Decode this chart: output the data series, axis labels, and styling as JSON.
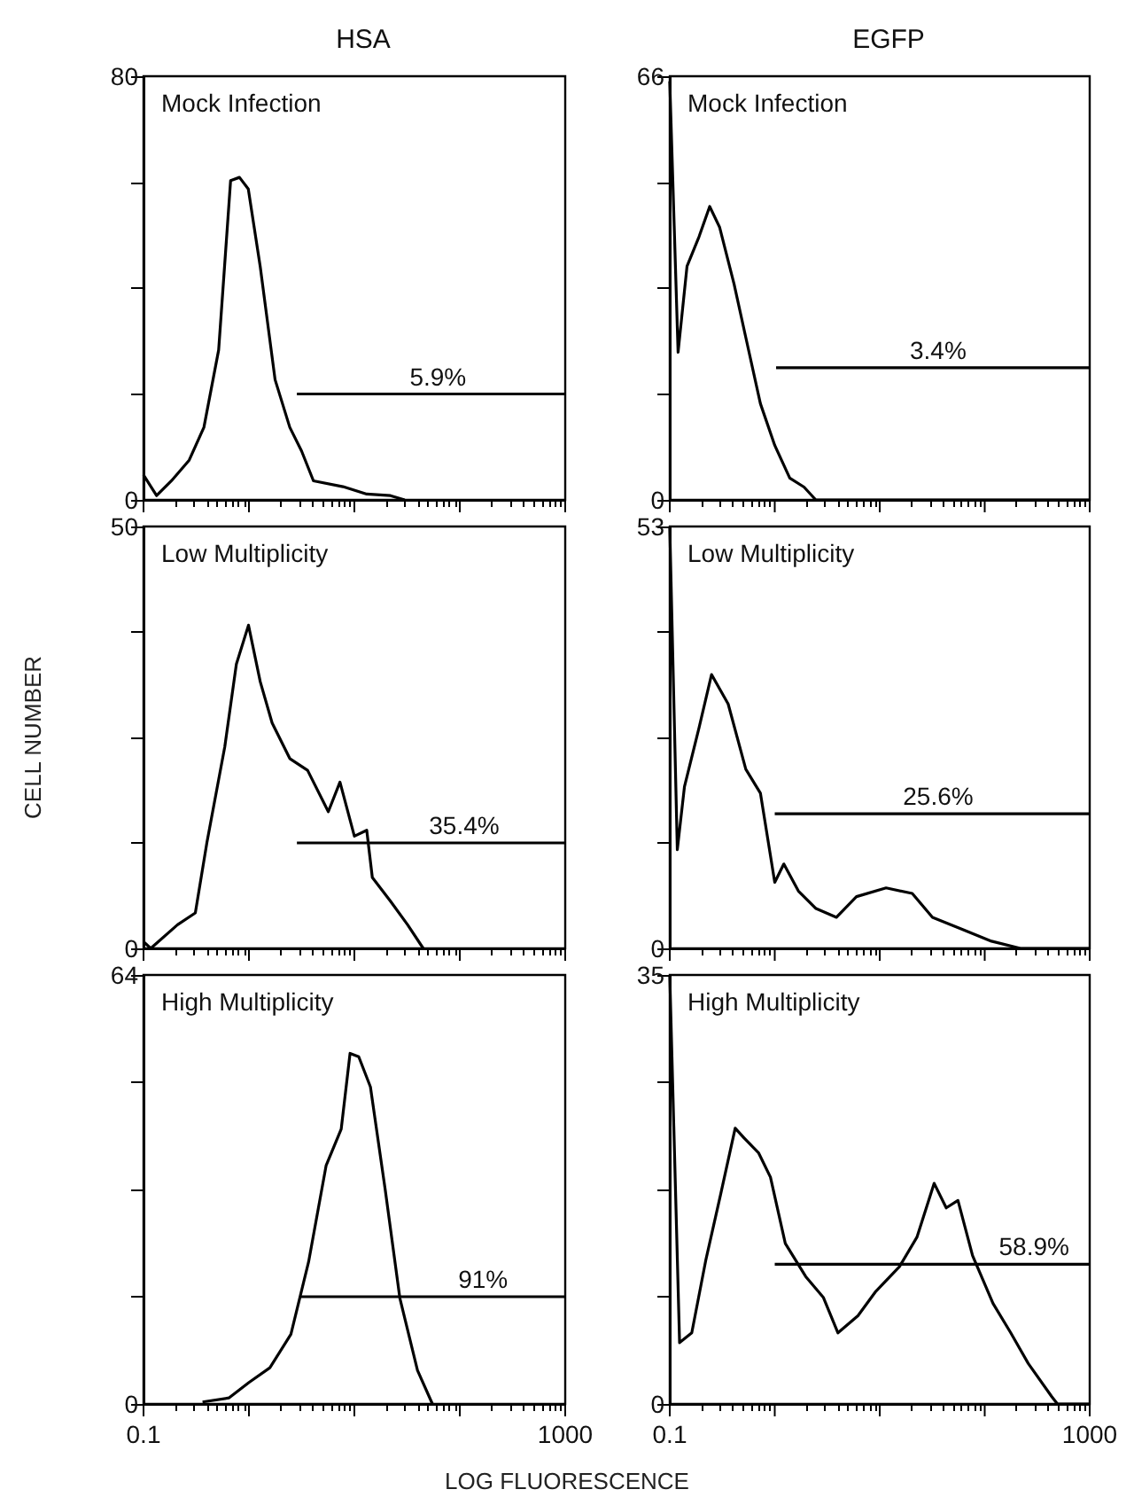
{
  "chart_data": [
    {
      "type": "line",
      "title": "HSA",
      "annotations": [
        "Mock Infection",
        {
          "text": "5.9%",
          "x": 62,
          "y": 20
        }
      ],
      "log": "x",
      "xlim": [
        0.1,
        1000
      ],
      "xticks": [
        {
          "value": 0.1,
          "label": null
        },
        {
          "value": 1,
          "label": null
        },
        {
          "value": 10,
          "label": null
        },
        {
          "value": 100,
          "label": null
        },
        {
          "value": 1000,
          "label": null
        }
      ],
      "ylim": [
        0,
        80
      ],
      "yticks": [
        0,
        {
          "value": 20,
          "label": null
        },
        {
          "value": 40,
          "label": null
        },
        {
          "value": 60,
          "label": null
        },
        80
      ],
      "tick_labels": "y",
      "marker": "none",
      "series": [
        {
          "color": "#000000",
          "x": [
            0.1,
            0.133,
            0.184,
            0.271,
            0.374,
            0.516,
            0.67,
            0.813,
            0.986,
            1.28,
            1.77,
            2.44,
            3.16,
            4.09,
            7.8,
            13.1,
            22,
            30
          ],
          "values": [
            4.7,
            0.8,
            3.6,
            7.5,
            13.7,
            28.3,
            60.3,
            60.9,
            58.7,
            44,
            22.7,
            13.7,
            9.2,
            3.6,
            2.5,
            1.1,
            0.8,
            0
          ]
        },
        {
          "color": "#000000",
          "x": [
            2.85,
            1000
          ],
          "values": [
            20,
            20
          ]
        }
      ]
    },
    {
      "type": "line",
      "title": "EGFP",
      "annotations": [
        "Mock Infection",
        {
          "text": "3.4%",
          "x": 36,
          "y": 20.6
        }
      ],
      "log": "x",
      "xlim": [
        0.1,
        1000
      ],
      "xticks": [
        {
          "value": 0.1,
          "label": null
        },
        {
          "value": 1,
          "label": null
        },
        {
          "value": 10,
          "label": null
        },
        {
          "value": 100,
          "label": null
        },
        {
          "value": 1000,
          "label": null
        }
      ],
      "ylim": [
        0,
        66
      ],
      "yticks": [
        0,
        {
          "value": 16.5,
          "label": null
        },
        {
          "value": 33,
          "label": null
        },
        {
          "value": 49.5,
          "label": null
        },
        66
      ],
      "tick_labels": "y",
      "marker": "none",
      "series": [
        {
          "color": "#000000",
          "x": [
            0.1,
            0.12,
            0.146,
            0.19,
            0.24,
            0.298,
            0.41,
            0.53,
            0.73,
            1.0,
            1.39,
            1.9,
            2.46,
            1000
          ],
          "values": [
            65.2,
            23,
            36.4,
            41,
            45.7,
            42.5,
            33.6,
            25.3,
            15,
            8.5,
            3.4,
            2,
            0,
            0
          ]
        },
        {
          "color": "#000000",
          "x": [
            1.03,
            1000
          ],
          "values": [
            20.6,
            20.6
          ]
        }
      ]
    },
    {
      "type": "line",
      "ylabel": "CELL NUMBER",
      "annotations": [
        "Low Multiplicity",
        {
          "text": "35.4%",
          "x": 110,
          "y": 12.5
        }
      ],
      "log": "x",
      "xlim": [
        0.1,
        1000
      ],
      "xticks": [
        {
          "value": 0.1,
          "label": null
        },
        {
          "value": 1,
          "label": null
        },
        {
          "value": 10,
          "label": null
        },
        {
          "value": 100,
          "label": null
        },
        {
          "value": 1000,
          "label": null
        }
      ],
      "ylim": [
        0,
        50
      ],
      "yticks": [
        0,
        {
          "value": 12.5,
          "label": null
        },
        {
          "value": 25,
          "label": null
        },
        {
          "value": 37.5,
          "label": null
        },
        50
      ],
      "tick_labels": "y",
      "marker": "none",
      "series": [
        {
          "color": "#000000",
          "x": [
            0.1,
            0.117,
            0.21,
            0.31,
            0.4,
            0.59,
            0.76,
            0.99,
            1.28,
            1.66,
            2.44,
            3.6,
            5.66,
            7.3,
            10,
            13.1,
            14.8,
            22,
            32,
            45
          ],
          "values": [
            0.8,
            0,
            2.8,
            4.2,
            12.6,
            23.9,
            33.7,
            38.3,
            31.6,
            26.7,
            22.5,
            21.1,
            16.2,
            19.7,
            13.3,
            14,
            8.4,
            5.6,
            2.8,
            0
          ]
        },
        {
          "color": "#000000",
          "x": [
            2.85,
            1000
          ],
          "values": [
            12.5,
            12.5
          ]
        }
      ]
    },
    {
      "type": "line",
      "annotations": [
        "Low Multiplicity",
        {
          "text": "25.6%",
          "x": 36,
          "y": 16.9
        }
      ],
      "log": "x",
      "xlim": [
        0.1,
        1000
      ],
      "xticks": [
        {
          "value": 0.1,
          "label": null
        },
        {
          "value": 1,
          "label": null
        },
        {
          "value": 10,
          "label": null
        },
        {
          "value": 100,
          "label": null
        },
        {
          "value": 1000,
          "label": null
        }
      ],
      "ylim": [
        0,
        53
      ],
      "yticks": [
        0,
        {
          "value": 13.25,
          "label": null
        },
        {
          "value": 26.5,
          "label": null
        },
        {
          "value": 39.75,
          "label": null
        },
        53
      ],
      "tick_labels": "y",
      "marker": "none",
      "series": [
        {
          "color": "#000000",
          "x": [
            0.1,
            0.118,
            0.138,
            0.19,
            0.25,
            0.36,
            0.53,
            0.73,
            1.0,
            1.22,
            1.68,
            2.47,
            3.87,
            6.0,
            11.5,
            20.4,
            31.8,
            61,
            116,
            219,
            1000
          ],
          "values": [
            53,
            12.4,
            20.3,
            27.7,
            34.4,
            30.7,
            22.5,
            19.5,
            8.3,
            10.6,
            7.2,
            5,
            3.9,
            6.5,
            7.6,
            6.9,
            3.9,
            2.4,
            0.9,
            0,
            0
          ]
        },
        {
          "color": "#000000",
          "x": [
            1.0,
            1000
          ],
          "values": [
            16.9,
            16.9
          ]
        }
      ]
    },
    {
      "type": "line",
      "xlabel": "LOG FLUORESCENCE",
      "annotations": [
        "High Multiplicity",
        {
          "text": "91%",
          "x": 166,
          "y": 16
        }
      ],
      "log": "x",
      "xlim": [
        0.1,
        1000
      ],
      "xticks": [
        {
          "value": 0.1,
          "label": "0.1"
        },
        {
          "value": 1,
          "label": null
        },
        {
          "value": 10,
          "label": null
        },
        {
          "value": 100,
          "label": null
        },
        {
          "value": 1000,
          "label": "1000"
        }
      ],
      "ylim": [
        0,
        64
      ],
      "yticks": [
        0,
        {
          "value": 16,
          "label": null
        },
        {
          "value": 32,
          "label": null
        },
        {
          "value": 48,
          "label": null
        },
        64
      ],
      "marker": "none",
      "series": [
        {
          "color": "#000000",
          "x": [
            0.363,
            0.645,
            1.0,
            1.58,
            2.5,
            3.68,
            5.4,
            7.5,
            9.1,
            11,
            14.2,
            19.6,
            27,
            39.7,
            55
          ],
          "values": [
            0.3,
            0.9,
            3.2,
            5.4,
            10.4,
            21.2,
            35.6,
            41,
            52.3,
            51.8,
            47.3,
            32,
            15.8,
            5,
            0
          ]
        },
        {
          "color": "#000000",
          "x": [
            3.02,
            1000
          ],
          "values": [
            16,
            16
          ]
        }
      ]
    },
    {
      "type": "line",
      "annotations": [
        "High Multiplicity",
        {
          "text": "58.9%",
          "x": 295,
          "y": 11.4
        }
      ],
      "log": "x",
      "xlim": [
        0.1,
        1000
      ],
      "xticks": [
        {
          "value": 0.1,
          "label": "0.1"
        },
        {
          "value": 1,
          "label": null
        },
        {
          "value": 10,
          "label": null
        },
        {
          "value": 100,
          "label": null
        },
        {
          "value": 1000,
          "label": "1000"
        }
      ],
      "ylim": [
        0,
        35
      ],
      "yticks": [
        0,
        {
          "value": 8.75,
          "label": null
        },
        {
          "value": 17.5,
          "label": null
        },
        {
          "value": 26.25,
          "label": null
        },
        35
      ],
      "marker": "none",
      "series": [
        {
          "color": "#000000",
          "x": [
            0.1,
            0.124,
            0.162,
            0.22,
            0.305,
            0.42,
            0.51,
            0.7,
            0.91,
            1.26,
            1.97,
            2.9,
            4.0,
            6.2,
            9.2,
            15.4,
            22.6,
            33,
            43,
            55.6,
            76.6,
            120,
            177,
            260,
            435,
            493,
            1000
          ],
          "values": [
            35,
            5,
            5.8,
            11.7,
            17.1,
            22.5,
            21.7,
            20.5,
            18.5,
            13.1,
            10.4,
            8.7,
            5.8,
            7.2,
            9.2,
            11.2,
            13.6,
            18,
            16,
            16.6,
            12.1,
            8.2,
            5.8,
            3.3,
            0.6,
            0,
            0
          ]
        },
        {
          "color": "#000000",
          "x": [
            1.0,
            1000
          ],
          "values": [
            11.4,
            11.4
          ]
        }
      ]
    }
  ]
}
